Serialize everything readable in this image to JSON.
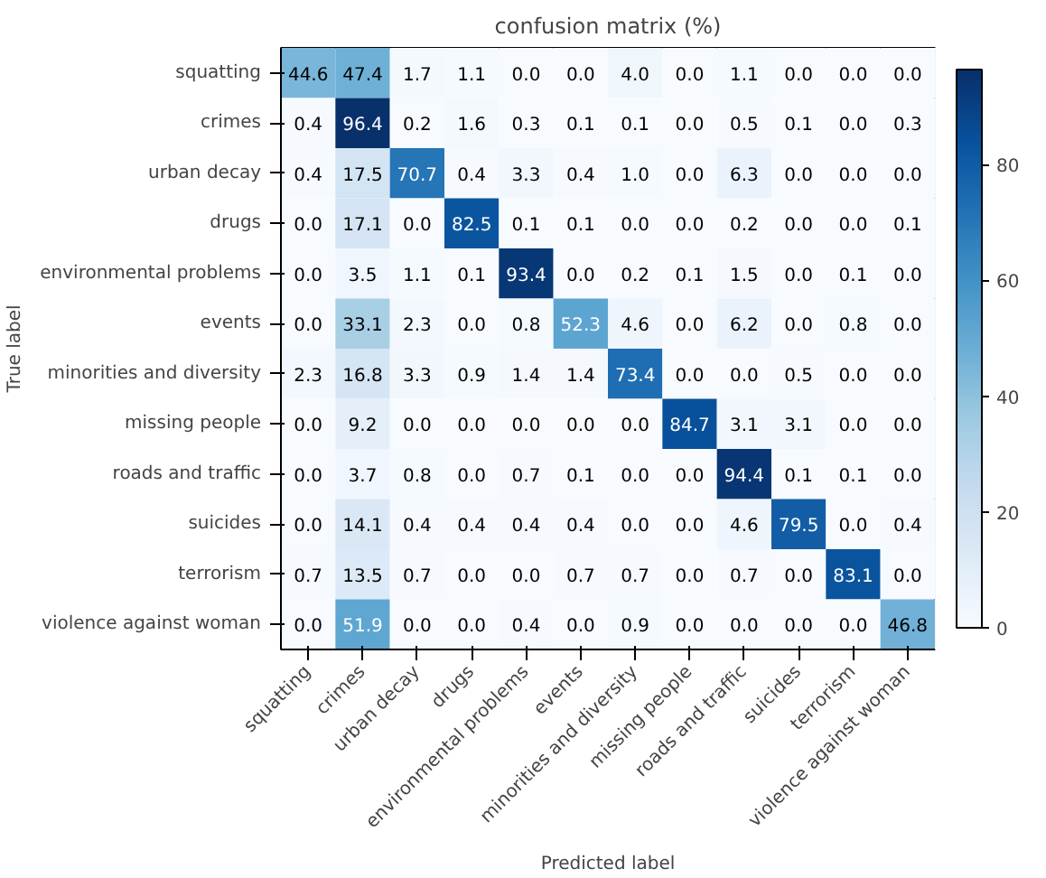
{
  "chart_data": {
    "type": "heatmap",
    "title": "confusion matrix (%)",
    "xlabel": "Predicted label",
    "ylabel": "True label",
    "categories": [
      "squatting",
      "crimes",
      "urban decay",
      "drugs",
      "environmental problems",
      "events",
      "minorities and diversity",
      "missing people",
      "roads and traffic",
      "suicides",
      "terrorism",
      "violence against woman"
    ],
    "y_categories": [
      "squatting",
      "crimes",
      "urban decay",
      "drugs",
      "environmental problems",
      "events",
      "minorities and diversity",
      "missing people",
      "roads and traffic",
      "suicides",
      "terrorism",
      "violence against woman"
    ],
    "cells": [
      [
        44.6,
        47.4,
        1.7,
        1.1,
        0.0,
        0.0,
        4.0,
        0.0,
        1.1,
        0.0,
        0.0,
        0.0
      ],
      [
        0.4,
        96.4,
        0.2,
        1.6,
        0.3,
        0.1,
        0.1,
        0.0,
        0.5,
        0.1,
        0.0,
        0.3
      ],
      [
        0.4,
        17.5,
        70.7,
        0.4,
        3.3,
        0.4,
        1.0,
        0.0,
        6.3,
        0.0,
        0.0,
        0.0
      ],
      [
        0.0,
        17.1,
        0.0,
        82.5,
        0.1,
        0.1,
        0.0,
        0.0,
        0.2,
        0.0,
        0.0,
        0.1
      ],
      [
        0.0,
        3.5,
        1.1,
        0.1,
        93.4,
        0.0,
        0.2,
        0.1,
        1.5,
        0.0,
        0.1,
        0.0
      ],
      [
        0.0,
        33.1,
        2.3,
        0.0,
        0.8,
        52.3,
        4.6,
        0.0,
        6.2,
        0.0,
        0.8,
        0.0
      ],
      [
        2.3,
        16.8,
        3.3,
        0.9,
        1.4,
        1.4,
        73.4,
        0.0,
        0.0,
        0.5,
        0.0,
        0.0
      ],
      [
        0.0,
        9.2,
        0.0,
        0.0,
        0.0,
        0.0,
        0.0,
        84.7,
        3.1,
        3.1,
        0.0,
        0.0
      ],
      [
        0.0,
        3.7,
        0.8,
        0.0,
        0.7,
        0.1,
        0.0,
        0.0,
        94.4,
        0.1,
        0.1,
        0.0
      ],
      [
        0.0,
        14.1,
        0.4,
        0.4,
        0.4,
        0.4,
        0.0,
        0.0,
        4.6,
        79.5,
        0.0,
        0.4
      ],
      [
        0.7,
        13.5,
        0.7,
        0.0,
        0.0,
        0.7,
        0.7,
        0.0,
        0.7,
        0.0,
        83.1,
        0.0
      ],
      [
        0.0,
        51.9,
        0.0,
        0.0,
        0.4,
        0.0,
        0.9,
        0.0,
        0.0,
        0.0,
        0.0,
        46.8
      ]
    ],
    "cell_labels": [
      [
        "44.6",
        "47.4",
        "1.7",
        "1.1",
        "0.0",
        "0.0",
        "4.0",
        "0.0",
        "1.1",
        "0.0",
        "0.0",
        "0.0"
      ],
      [
        "0.4",
        "96.4",
        "0.2",
        "1.6",
        "0.3",
        "0.1",
        "0.1",
        "0.0",
        "0.5",
        "0.1",
        "0.0",
        "0.3"
      ],
      [
        "0.4",
        "17.5",
        "70.7",
        "0.4",
        "3.3",
        "0.4",
        "1.0",
        "0.0",
        "6.3",
        "0.0",
        "0.0",
        "0.0"
      ],
      [
        "0.0",
        "17.1",
        "0.0",
        "82.5",
        "0.1",
        "0.1",
        "0.0",
        "0.0",
        "0.2",
        "0.0",
        "0.0",
        "0.1"
      ],
      [
        "0.0",
        "3.5",
        "1.1",
        "0.1",
        "93.4",
        "0.0",
        "0.2",
        "0.1",
        "1.5",
        "0.0",
        "0.1",
        "0.0"
      ],
      [
        "0.0",
        "33.1",
        "2.3",
        "0.0",
        "0.8",
        "52.3",
        "4.6",
        "0.0",
        "6.2",
        "0.0",
        "0.8",
        "0.0"
      ],
      [
        "2.3",
        "16.8",
        "3.3",
        "0.9",
        "1.4",
        "1.4",
        "73.4",
        "0.0",
        "0.0",
        "0.5",
        "0.0",
        "0.0"
      ],
      [
        "0.0",
        "9.2",
        "0.0",
        "0.0",
        "0.0",
        "0.0",
        "0.0",
        "84.7",
        "3.1",
        "3.1",
        "0.0",
        "0.0"
      ],
      [
        "0.0",
        "3.7",
        "0.8",
        "0.0",
        "0.7",
        "0.1",
        "0.0",
        "0.0",
        "94.4",
        "0.1",
        "0.1",
        "0.0"
      ],
      [
        "0.0",
        "14.1",
        "0.4",
        "0.4",
        "0.4",
        "0.4",
        "0.0",
        "0.0",
        "4.6",
        "79.5",
        "0.0",
        "0.4"
      ],
      [
        "0.7",
        "13.5",
        "0.7",
        "0.0",
        "0.0",
        "0.7",
        "0.7",
        "0.0",
        "0.7",
        "0.0",
        "83.1",
        "0.0"
      ],
      [
        "0.0",
        "51.9",
        "0.0",
        "0.0",
        "0.4",
        "0.0",
        "0.9",
        "0.0",
        "0.0",
        "0.0",
        "0.0",
        "46.8"
      ]
    ],
    "data_labels": true,
    "clim": [
      0,
      96.4
    ],
    "cticks": [
      0,
      20,
      40,
      60,
      80
    ]
  }
}
